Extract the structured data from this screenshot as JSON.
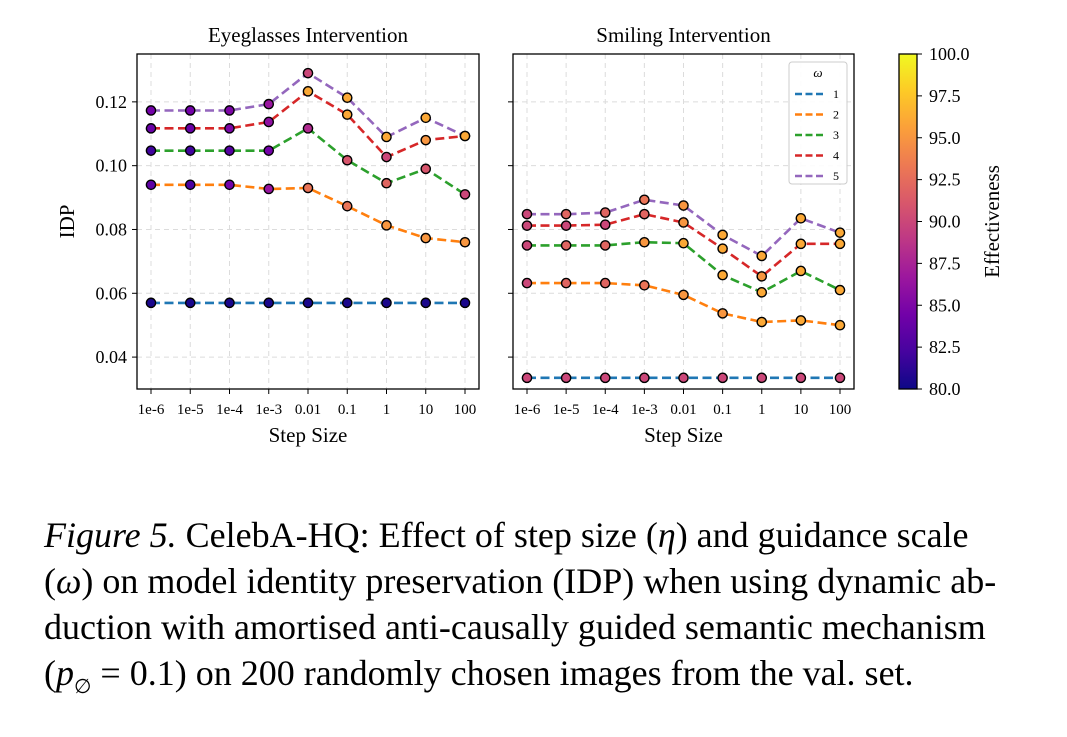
{
  "colors": {
    "series": [
      "#1f77b4",
      "#ff7f0e",
      "#2ca02c",
      "#d62728",
      "#9467bd"
    ],
    "grid": "#dcdcdc"
  },
  "chart_data": [
    {
      "type": "line",
      "title": "Eyeglasses Intervention",
      "xlabel": "Step Size",
      "ylabel": "IDP",
      "categories": [
        "1e-6",
        "1e-5",
        "1e-4",
        "1e-3",
        "0.01",
        "0.1",
        "1",
        "10",
        "100"
      ],
      "ylim": [
        0.03,
        0.135
      ],
      "yticks": [
        0.04,
        0.06,
        0.08,
        0.1,
        0.12
      ],
      "ytick_labels": [
        "0.04",
        "0.06",
        "0.08",
        "0.10",
        "0.12"
      ],
      "grid": true,
      "series": [
        {
          "name": "1",
          "values": [
            0.057,
            0.057,
            0.057,
            0.057,
            0.057,
            0.057,
            0.057,
            0.057,
            0.057
          ],
          "effectiveness": [
            80.5,
            80.5,
            80.5,
            80.5,
            80.5,
            80.5,
            80.5,
            80.5,
            80.5
          ]
        },
        {
          "name": "2",
          "values": [
            0.094,
            0.094,
            0.094,
            0.0927,
            0.093,
            0.0873,
            0.0813,
            0.0773,
            0.076
          ],
          "effectiveness": [
            83.5,
            82.5,
            84.5,
            86.5,
            93,
            93,
            95,
            95,
            95
          ]
        },
        {
          "name": "3",
          "values": [
            0.1047,
            0.1047,
            0.1047,
            0.1047,
            0.1117,
            0.1017,
            0.0945,
            0.099,
            0.091
          ],
          "effectiveness": [
            82,
            82,
            83,
            84.5,
            88,
            91,
            92,
            91,
            90
          ]
        },
        {
          "name": "4",
          "values": [
            0.1117,
            0.1117,
            0.1117,
            0.1137,
            0.1233,
            0.116,
            0.1027,
            0.108,
            0.1093
          ],
          "effectiveness": [
            84,
            84,
            85,
            86,
            96,
            96,
            90,
            95,
            96
          ]
        },
        {
          "name": "5",
          "values": [
            0.1173,
            0.1173,
            0.1173,
            0.1193,
            0.129,
            0.1213,
            0.109,
            0.115,
            0.1093
          ],
          "effectiveness": [
            84.5,
            84.5,
            85,
            86.5,
            90,
            96,
            96,
            96,
            96
          ]
        }
      ]
    },
    {
      "type": "line",
      "title": "Smiling Intervention",
      "xlabel": "Step Size",
      "categories": [
        "1e-6",
        "1e-5",
        "1e-4",
        "1e-3",
        "0.01",
        "0.1",
        "1",
        "10",
        "100"
      ],
      "ylim": [
        0.03,
        0.135
      ],
      "grid": true,
      "legend": {
        "title": "ω",
        "placement": "top-right"
      },
      "series": [
        {
          "name": "1",
          "values": [
            0.0335,
            0.0335,
            0.0335,
            0.0335,
            0.0335,
            0.0335,
            0.0335,
            0.0335,
            0.0335
          ],
          "effectiveness": [
            90,
            90,
            90,
            90,
            90,
            90,
            90,
            90,
            90
          ]
        },
        {
          "name": "2",
          "values": [
            0.0632,
            0.0632,
            0.0632,
            0.0625,
            0.0595,
            0.0537,
            0.051,
            0.0515,
            0.05
          ],
          "effectiveness": [
            90,
            92,
            92,
            93,
            95,
            95,
            96,
            96,
            96
          ]
        },
        {
          "name": "3",
          "values": [
            0.075,
            0.075,
            0.075,
            0.076,
            0.0757,
            0.0657,
            0.0603,
            0.067,
            0.061
          ],
          "effectiveness": [
            90,
            92,
            92,
            95,
            96,
            96,
            96,
            96,
            96
          ]
        },
        {
          "name": "4",
          "values": [
            0.0812,
            0.0812,
            0.0815,
            0.0848,
            0.0822,
            0.074,
            0.0653,
            0.0755,
            0.0755
          ],
          "effectiveness": [
            90,
            90,
            90,
            92,
            95,
            96,
            95,
            96,
            96
          ]
        },
        {
          "name": "5",
          "values": [
            0.0848,
            0.0848,
            0.0853,
            0.0893,
            0.0875,
            0.0783,
            0.0717,
            0.0835,
            0.079
          ],
          "effectiveness": [
            90,
            92,
            92,
            93,
            95,
            96,
            96,
            96,
            96
          ]
        }
      ]
    }
  ],
  "colorbar": {
    "label": "Effectiveness",
    "range": [
      80.0,
      100.0
    ],
    "ticks": [
      "80.0",
      "82.5",
      "85.0",
      "87.5",
      "90.0",
      "92.5",
      "95.0",
      "97.5",
      "100.0"
    ],
    "colormap": [
      "#0d0887",
      "#46039f",
      "#7201a8",
      "#9c179e",
      "#bd3786",
      "#d8576b",
      "#ed7953",
      "#fb9f3a",
      "#fdca26",
      "#f0f921"
    ]
  },
  "caption": {
    "label": "Figure 5.",
    "text_1": " CelebA-HQ: Effect of step size (",
    "eta": "η",
    "text_2": ") and guidance scale",
    "text_3": "(",
    "omega": "ω",
    "text_4": ") on model identity preservation (IDP) when using dynamic ab-",
    "text_5": "duction with amortised anti-causally guided semantic mechanism",
    "text_6": "(",
    "p": "p",
    "p_sub": "∅",
    "text_7": " = 0.1) on 200 randomly chosen images from the val. set."
  }
}
